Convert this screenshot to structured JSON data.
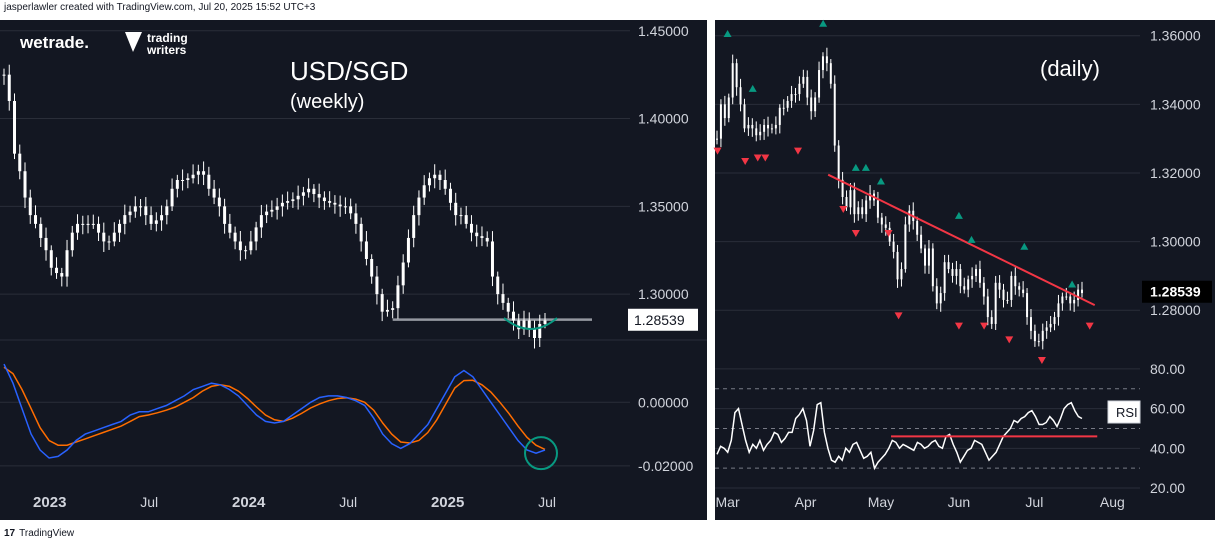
{
  "header": {
    "attribution": "jasperlawler created with TradingView.com, Jul 20, 2025 15:52 UTC+3"
  },
  "footer": {
    "brand_mark": "17",
    "brand": "TradingView"
  },
  "logos": {
    "wetrade": "wetrade.",
    "trading_writers_line1": "trading",
    "trading_writers_line2": "writers"
  },
  "colors": {
    "background": "#131722",
    "candle": "#ffffff",
    "grid": "#2a2e39",
    "macd": "#2962ff",
    "signal": "#ff6d00",
    "trendline": "#f23645",
    "support": "#9598a1",
    "pivot_high": "#089981",
    "pivot_low": "#f23645",
    "arc": "#089981",
    "rsi": "#ffffff",
    "rsi_band": "#787b86"
  },
  "chart_data": [
    {
      "type": "candlestick",
      "title": "USD/SGD",
      "subtitle": "(weekly)",
      "current_price_label": "1.28539",
      "current_price": 1.28539,
      "support_level": 1.2855,
      "ylim": [
        1.275,
        1.455
      ],
      "y_ticks": [
        "1.45000",
        "1.40000",
        "1.35000",
        "1.30000"
      ],
      "y_tick_values": [
        1.45,
        1.4,
        1.35,
        1.3
      ],
      "x_ticks": [
        "2023",
        "Jul",
        "2024",
        "Jul",
        "2025",
        "Jul"
      ],
      "x_tick_dates": [
        "2023-01",
        "2023-07",
        "2024-01",
        "2024-07",
        "2025-01",
        "2025-07"
      ],
      "x_range": [
        "2022-10",
        "2025-12"
      ],
      "closes": [
        1.425,
        1.41,
        1.38,
        1.37,
        1.355,
        1.345,
        1.34,
        1.332,
        1.325,
        1.315,
        1.312,
        1.31,
        1.325,
        1.335,
        1.34,
        1.34,
        1.34,
        1.34,
        1.335,
        1.33,
        1.33,
        1.335,
        1.34,
        1.345,
        1.347,
        1.35,
        1.35,
        1.345,
        1.34,
        1.342,
        1.345,
        1.35,
        1.36,
        1.365,
        1.365,
        1.366,
        1.368,
        1.37,
        1.368,
        1.36,
        1.355,
        1.35,
        1.34,
        1.335,
        1.33,
        1.325,
        1.325,
        1.33,
        1.338,
        1.345,
        1.347,
        1.348,
        1.35,
        1.352,
        1.353,
        1.354,
        1.356,
        1.358,
        1.36,
        1.357,
        1.355,
        1.353,
        1.352,
        1.351,
        1.35,
        1.35,
        1.346,
        1.34,
        1.33,
        1.32,
        1.31,
        1.3,
        1.29,
        1.291,
        1.292,
        1.305,
        1.318,
        1.332,
        1.345,
        1.355,
        1.362,
        1.366,
        1.368,
        1.365,
        1.36,
        1.352,
        1.345,
        1.345,
        1.34,
        1.335,
        1.333,
        1.332,
        1.33,
        1.31,
        1.3,
        1.295,
        1.29,
        1.285,
        1.28,
        1.285,
        1.28,
        1.275,
        1.283,
        1.285
      ],
      "macd_ylim": [
        -0.026,
        0.018
      ],
      "macd_y_ticks": [
        "0.00000",
        "-0.02000"
      ],
      "macd_y_tick_values": [
        0.0,
        -0.02
      ],
      "macd": [
        0.012,
        0.006,
        -0.002,
        -0.01,
        -0.015,
        -0.0175,
        -0.017,
        -0.015,
        -0.012,
        -0.01,
        -0.009,
        -0.008,
        -0.007,
        -0.006,
        -0.004,
        -0.003,
        -0.003,
        -0.002,
        -0.001,
        0.0005,
        0.002,
        0.004,
        0.005,
        0.006,
        0.0055,
        0.004,
        0.002,
        -0.001,
        -0.004,
        -0.006,
        -0.0065,
        -0.006,
        -0.004,
        -0.002,
        0.0,
        0.0015,
        0.002,
        0.002,
        0.0015,
        0.0005,
        -0.001,
        -0.005,
        -0.01,
        -0.013,
        -0.0145,
        -0.013,
        -0.01,
        -0.007,
        -0.002,
        0.003,
        0.008,
        0.01,
        0.008,
        0.004,
        0.0,
        -0.004,
        -0.008,
        -0.012,
        -0.015,
        -0.016,
        -0.015
      ],
      "signal": [
        0.011,
        0.009,
        0.004,
        -0.002,
        -0.008,
        -0.012,
        -0.0135,
        -0.0135,
        -0.0125,
        -0.0115,
        -0.0105,
        -0.0095,
        -0.0085,
        -0.0075,
        -0.006,
        -0.0045,
        -0.004,
        -0.0033,
        -0.0025,
        -0.0015,
        0.0,
        0.0015,
        0.0035,
        0.005,
        0.0055,
        0.005,
        0.0035,
        0.0012,
        -0.0015,
        -0.004,
        -0.0055,
        -0.006,
        -0.005,
        -0.0035,
        -0.0018,
        -0.0005,
        0.0005,
        0.0012,
        0.0014,
        0.001,
        0.0,
        -0.0025,
        -0.0065,
        -0.01,
        -0.0125,
        -0.0128,
        -0.012,
        -0.0095,
        -0.0055,
        -0.0005,
        0.0045,
        0.0068,
        0.0069,
        0.0055,
        0.0032,
        0.0,
        -0.0035,
        -0.0075,
        -0.011,
        -0.0135,
        -0.0148
      ]
    },
    {
      "type": "candlestick",
      "title": "(daily)",
      "current_price_label": "1.28539",
      "current_price": 1.28539,
      "ylim": [
        1.262,
        1.364
      ],
      "y_ticks": [
        "1.36000",
        "1.34000",
        "1.32000",
        "1.30000",
        "1.28000"
      ],
      "y_tick_values": [
        1.36,
        1.34,
        1.32,
        1.3,
        1.28
      ],
      "x_ticks": [
        "Mar",
        "Apr",
        "May",
        "Jun",
        "Jul",
        "Aug"
      ],
      "x_tick_dates": [
        "2025-03-01",
        "2025-04-01",
        "2025-05-01",
        "2025-06-01",
        "2025-07-01",
        "2025-08-01"
      ],
      "x_range": [
        "2025-02-24",
        "2025-08-12"
      ],
      "closes": [
        1.33,
        1.34,
        1.336,
        1.342,
        1.352,
        1.345,
        1.34,
        1.333,
        1.334,
        1.333,
        1.331,
        1.332,
        1.334,
        1.333,
        1.333,
        1.334,
        1.339,
        1.339,
        1.341,
        1.343,
        1.343,
        1.346,
        1.348,
        1.342,
        1.338,
        1.342,
        1.35,
        1.354,
        1.352,
        1.346,
        1.328,
        1.318,
        1.313,
        1.31,
        1.315,
        1.308,
        1.31,
        1.308,
        1.312,
        1.314,
        1.312,
        1.307,
        1.305,
        1.304,
        1.3,
        1.297,
        1.289,
        1.292,
        1.305,
        1.309,
        1.306,
        1.302,
        1.298,
        1.293,
        1.298,
        1.287,
        1.282,
        1.285,
        1.294,
        1.292,
        1.29,
        1.292,
        1.287,
        1.286,
        1.289,
        1.29,
        1.292,
        1.288,
        1.284,
        1.278,
        1.276,
        1.288,
        1.286,
        1.283,
        1.283,
        1.29,
        1.287,
        1.286,
        1.285,
        1.278,
        1.274,
        1.271,
        1.271,
        1.274,
        1.275,
        1.276,
        1.278,
        1.282,
        1.284,
        1.284,
        1.282,
        1.283,
        1.286,
        1.285
      ],
      "trendline": [
        {
          "date": "2025-04-10",
          "price": 1.3195
        },
        {
          "date": "2025-07-25",
          "price": 1.2815
        }
      ],
      "pivot_highs": [
        {
          "date": "2025-03-01",
          "price": 1.3605
        },
        {
          "date": "2025-03-11",
          "price": 1.3445
        },
        {
          "date": "2025-04-08",
          "price": 1.3635
        },
        {
          "date": "2025-04-21",
          "price": 1.3215
        },
        {
          "date": "2025-04-25",
          "price": 1.3215
        },
        {
          "date": "2025-05-01",
          "price": 1.3175
        },
        {
          "date": "2025-06-01",
          "price": 1.3075
        },
        {
          "date": "2025-06-06",
          "price": 1.3005
        },
        {
          "date": "2025-06-27",
          "price": 1.2985
        },
        {
          "date": "2025-07-16",
          "price": 1.2875
        }
      ],
      "pivot_lows": [
        {
          "date": "2025-02-25",
          "price": 1.3265
        },
        {
          "date": "2025-03-08",
          "price": 1.3235
        },
        {
          "date": "2025-03-13",
          "price": 1.3245
        },
        {
          "date": "2025-03-16",
          "price": 1.3245
        },
        {
          "date": "2025-03-29",
          "price": 1.3265
        },
        {
          "date": "2025-04-16",
          "price": 1.3095
        },
        {
          "date": "2025-04-21",
          "price": 1.3025
        },
        {
          "date": "2025-05-04",
          "price": 1.3025
        },
        {
          "date": "2025-05-08",
          "price": 1.2785
        },
        {
          "date": "2025-06-01",
          "price": 1.2755
        },
        {
          "date": "2025-06-11",
          "price": 1.2755
        },
        {
          "date": "2025-06-21",
          "price": 1.2715
        },
        {
          "date": "2025-07-04",
          "price": 1.2655
        },
        {
          "date": "2025-07-23",
          "price": 1.2755
        }
      ],
      "rsi_label": "RSI",
      "rsi_ylim": [
        18,
        86
      ],
      "rsi_y_ticks": [
        "80.00",
        "60.00",
        "40.00",
        "20.00"
      ],
      "rsi_y_tick_values": [
        80,
        60,
        40,
        20
      ],
      "rsi_bands": [
        70,
        30,
        50
      ],
      "rsi_support_level": 46,
      "rsi_support_range": [
        "2025-05-05",
        "2025-07-26"
      ],
      "rsi": [
        37,
        41,
        40,
        38,
        44,
        58,
        60,
        52,
        44,
        38,
        42,
        40,
        44,
        39,
        42,
        44,
        48,
        47,
        43,
        45,
        48,
        48,
        55,
        57,
        60,
        54,
        41,
        49,
        62,
        63,
        48,
        40,
        34,
        33,
        36,
        34,
        40,
        38,
        42,
        43,
        39,
        35,
        36,
        38,
        30,
        33,
        35,
        37,
        40,
        44,
        43,
        40,
        42,
        41,
        40,
        39,
        43,
        42,
        40,
        41,
        43,
        44,
        41,
        40,
        46,
        47,
        42,
        38,
        33,
        36,
        39,
        40,
        44,
        43,
        42,
        38,
        34,
        36,
        38,
        42,
        46,
        48,
        50,
        54,
        53,
        55,
        56,
        58,
        59,
        56,
        52,
        52,
        53,
        56,
        54,
        51,
        55,
        60,
        62,
        63,
        59,
        56,
        55
      ]
    }
  ]
}
